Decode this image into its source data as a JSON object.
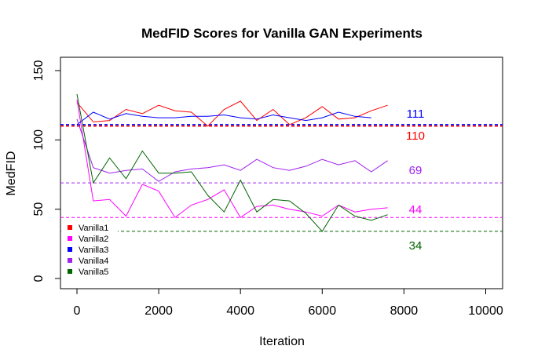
{
  "chart_data": {
    "type": "line",
    "title": "MedFID Scores for Vanilla GAN Experiments",
    "xlabel": "Iteration",
    "ylabel": "MedFID",
    "xlim": [
      0,
      10000
    ],
    "ylim": [
      0,
      150
    ],
    "x_ticks": [
      0,
      2000,
      4000,
      6000,
      8000,
      10000
    ],
    "y_ticks": [
      0,
      50,
      100,
      150
    ],
    "grid": false,
    "legend_position": "bottom-left",
    "series": [
      {
        "name": "Vanilla1",
        "color": "#ff0000",
        "x": [
          0,
          400,
          800,
          1200,
          1600,
          2000,
          2400,
          2800,
          3200,
          3600,
          4000,
          4400,
          4800,
          5200,
          5600,
          6000,
          6400,
          6800,
          7200,
          7600
        ],
        "y": [
          127,
          113,
          114,
          122,
          119,
          125,
          121,
          120,
          110,
          122,
          128,
          114,
          122,
          111,
          116,
          124,
          115,
          116,
          121,
          125
        ]
      },
      {
        "name": "Vanilla2",
        "color": "#ff00ff",
        "x": [
          0,
          400,
          800,
          1200,
          1600,
          2000,
          2400,
          2800,
          3200,
          3600,
          4000,
          4400,
          4800,
          5200,
          5600,
          6000,
          6400,
          6800,
          7200,
          7600
        ],
        "y": [
          129,
          56,
          57,
          45,
          68,
          63,
          44,
          53,
          57,
          64,
          44,
          52,
          53,
          50,
          48,
          45,
          53,
          48,
          50,
          51
        ]
      },
      {
        "name": "Vanilla3",
        "color": "#0000ff",
        "x": [
          0,
          400,
          800,
          1200,
          1600,
          2000,
          2400,
          2800,
          3200,
          3600,
          4000,
          4400,
          4800,
          5200,
          5600,
          6000,
          6400,
          6800,
          7200
        ],
        "y": [
          111,
          120,
          115,
          119,
          117,
          116,
          116,
          117,
          117,
          118,
          116,
          115,
          118,
          116,
          114,
          116,
          120,
          117,
          116
        ]
      },
      {
        "name": "Vanilla4",
        "color": "#a020f0",
        "x": [
          0,
          400,
          800,
          1200,
          1600,
          2000,
          2400,
          2800,
          3200,
          3600,
          4000,
          4400,
          4800,
          5200,
          5600,
          6000,
          6400,
          6800,
          7200,
          7600
        ],
        "y": [
          115,
          80,
          76,
          78,
          79,
          70,
          77,
          79,
          80,
          82,
          78,
          86,
          80,
          78,
          81,
          86,
          82,
          85,
          77,
          85
        ]
      },
      {
        "name": "Vanilla5",
        "color": "#006400",
        "x": [
          0,
          400,
          800,
          1200,
          1600,
          2000,
          2400,
          2800,
          3200,
          3600,
          4000,
          4400,
          4800,
          5200,
          5600,
          6000,
          6400,
          6800,
          7200,
          7600
        ],
        "y": [
          133,
          69,
          87,
          72,
          92,
          76,
          76,
          77,
          60,
          48,
          71,
          48,
          57,
          56,
          47,
          34,
          53,
          45,
          42,
          46
        ]
      }
    ],
    "reference_lines": [
      {
        "value": 111,
        "label": "111",
        "color": "#0000ff"
      },
      {
        "value": 110,
        "label": "110",
        "color": "#ff0000"
      },
      {
        "value": 69,
        "label": "69",
        "color": "#a020f0"
      },
      {
        "value": 44,
        "label": "44",
        "color": "#ff00ff"
      },
      {
        "value": 34,
        "label": "34",
        "color": "#006400"
      }
    ]
  }
}
